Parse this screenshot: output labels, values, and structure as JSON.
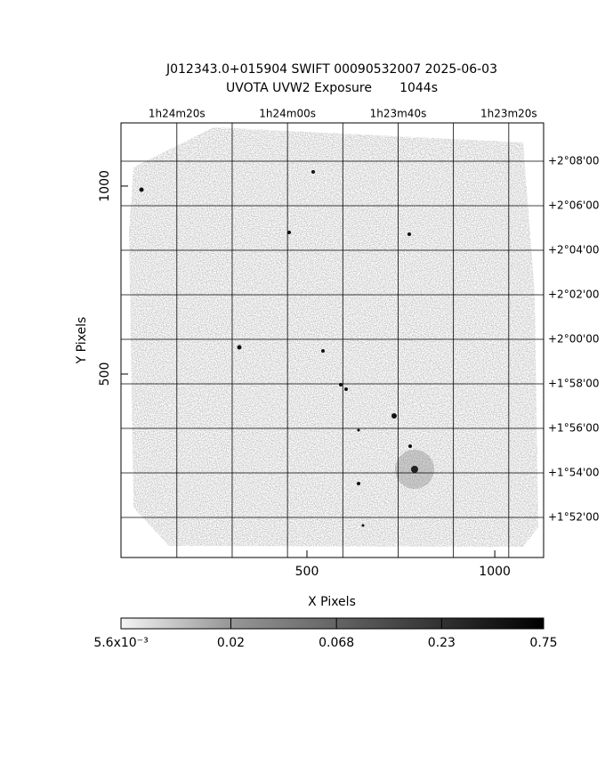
{
  "chart_data": {
    "type": "image",
    "title": "J012343.0+015904 SWIFT 00090532007 2025-06-03",
    "subtitle": "UVOTA UVW2 Exposure       1044s",
    "xlabel": "X Pixels",
    "ylabel": "Y Pixels",
    "xlim": [
      5,
      1130
    ],
    "xticks": [
      500,
      1000
    ],
    "ylim": [
      12,
      1168
    ],
    "yticks": [
      500,
      1000
    ],
    "ra_lim": [
      5070.1,
      4993.7
    ],
    "ra_grid": [
      5060,
      5050,
      5040,
      5030,
      5020,
      5010,
      5000
    ],
    "ra_ticks": [
      {
        "value": 5060,
        "label": "1h24m20s"
      },
      {
        "value": 5040,
        "label": "1h24m00s"
      },
      {
        "value": 5020,
        "label": "1h23m40s"
      },
      {
        "value": 5000,
        "label": "1h23m20s"
      }
    ],
    "dec_lim": [
      110.2,
      129.72
    ],
    "dec_ticks": [
      {
        "value": 128,
        "label": "+2°08'00"
      },
      {
        "value": 126,
        "label": "+2°06'00"
      },
      {
        "value": 124,
        "label": "+2°04'00"
      },
      {
        "value": 122,
        "label": "+2°02'00"
      },
      {
        "value": 120,
        "label": "+2°00'00"
      },
      {
        "value": 118,
        "label": "+1°58'00"
      },
      {
        "value": 116,
        "label": "+1°56'00"
      },
      {
        "value": 114,
        "label": "+1°54'00"
      },
      {
        "value": 112,
        "label": "+1°52'00"
      }
    ],
    "colorbar_lim": [
      0.0056,
      0.75
    ],
    "colorbar_log": true,
    "colorbar_ticks": [
      {
        "value": 0.0056,
        "label": "5.6x10⁻³"
      },
      0.02,
      0.068,
      0.23,
      0.75
    ]
  }
}
